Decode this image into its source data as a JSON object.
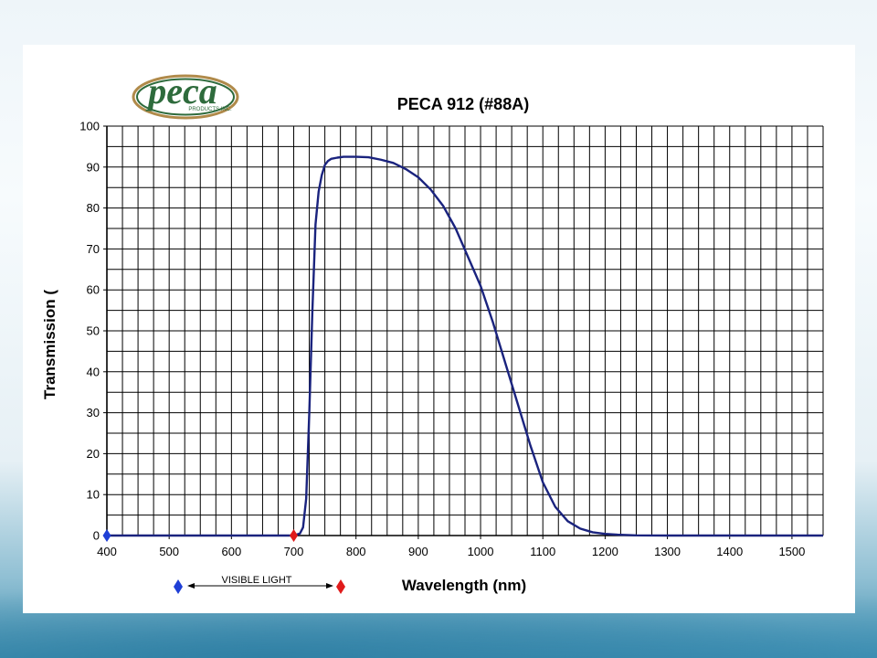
{
  "brand": {
    "logo_word": "peca",
    "logo_sub": "PRODUCTS INC."
  },
  "colors": {
    "curve": "#1a237e",
    "grid": "#000000",
    "blue_marker": "#1f3fd6",
    "red_marker": "#e01b1b",
    "logo_green": "#2e6b3c",
    "logo_tan": "#b08a4a"
  },
  "chart_data": {
    "type": "line",
    "title": "PECA 912 (#88A)",
    "xlabel": "Wavelength (nm)",
    "ylabel": "Transmission (",
    "xlim": [
      400,
      1550
    ],
    "ylim": [
      0,
      100
    ],
    "x_ticks": [
      400,
      500,
      600,
      700,
      800,
      900,
      1000,
      1100,
      1200,
      1300,
      1400,
      1500
    ],
    "y_ticks": [
      0,
      10,
      20,
      30,
      40,
      50,
      60,
      70,
      80,
      90,
      100
    ],
    "x_minor_step": 25,
    "y_minor_step": 5,
    "grid": true,
    "series": [
      {
        "x": [
          400,
          500,
          600,
          700,
          710,
          715,
          720,
          725,
          730,
          735,
          740,
          745,
          750,
          755,
          760,
          770,
          780,
          800,
          820,
          840,
          860,
          880,
          900,
          920,
          940,
          960,
          980,
          1000,
          1020,
          1040,
          1060,
          1080,
          1100,
          1120,
          1140,
          1160,
          1180,
          1200,
          1220,
          1250,
          1300,
          1400,
          1550
        ],
        "y": [
          0,
          0,
          0,
          0,
          0.5,
          2,
          9,
          30,
          55,
          76,
          84,
          88,
          90.5,
          91.5,
          92,
          92.3,
          92.5,
          92.5,
          92.4,
          91.8,
          91,
          89.5,
          87.5,
          84.5,
          80.5,
          75,
          68,
          61,
          52,
          42,
          32,
          22,
          13,
          7,
          3.5,
          1.7,
          0.8,
          0.4,
          0.2,
          0.05,
          0,
          0,
          0
        ]
      }
    ],
    "markers": [
      {
        "x": 400,
        "y": 0,
        "color": "blue"
      },
      {
        "x": 700,
        "y": 0,
        "color": "red"
      }
    ],
    "annotation": {
      "label": "VISIBLE LIGHT"
    }
  }
}
